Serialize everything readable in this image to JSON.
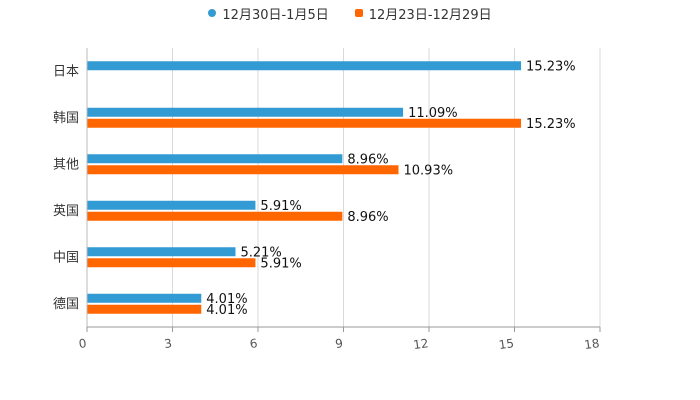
{
  "chart_data": {
    "type": "bar",
    "orientation": "horizontal",
    "title": "",
    "xlabel": "",
    "ylabel": "",
    "xlim": [
      0,
      18
    ],
    "xticks": [
      0,
      3,
      6,
      9,
      12,
      15,
      18
    ],
    "grid": true,
    "legend_position": "top-center",
    "categories": [
      "日本",
      "韩国",
      "其他",
      "英国",
      "中国",
      "德国"
    ],
    "series": [
      {
        "name": "12月30日-1月5日",
        "color": "#339bd3",
        "marker": "circle",
        "values": [
          15.23,
          11.09,
          8.96,
          5.91,
          5.21,
          4.01
        ],
        "labels": [
          "15.23%",
          "11.09%",
          "8.96%",
          "5.91%",
          "5.21%",
          "4.01%"
        ]
      },
      {
        "name": "12月23日-12月29日",
        "color": "#ff6600",
        "marker": "square",
        "values": [
          null,
          15.23,
          10.93,
          8.96,
          5.91,
          4.01
        ],
        "labels": [
          "",
          "15.23%",
          "10.93%",
          "8.96%",
          "5.91%",
          "4.01%"
        ]
      }
    ]
  }
}
